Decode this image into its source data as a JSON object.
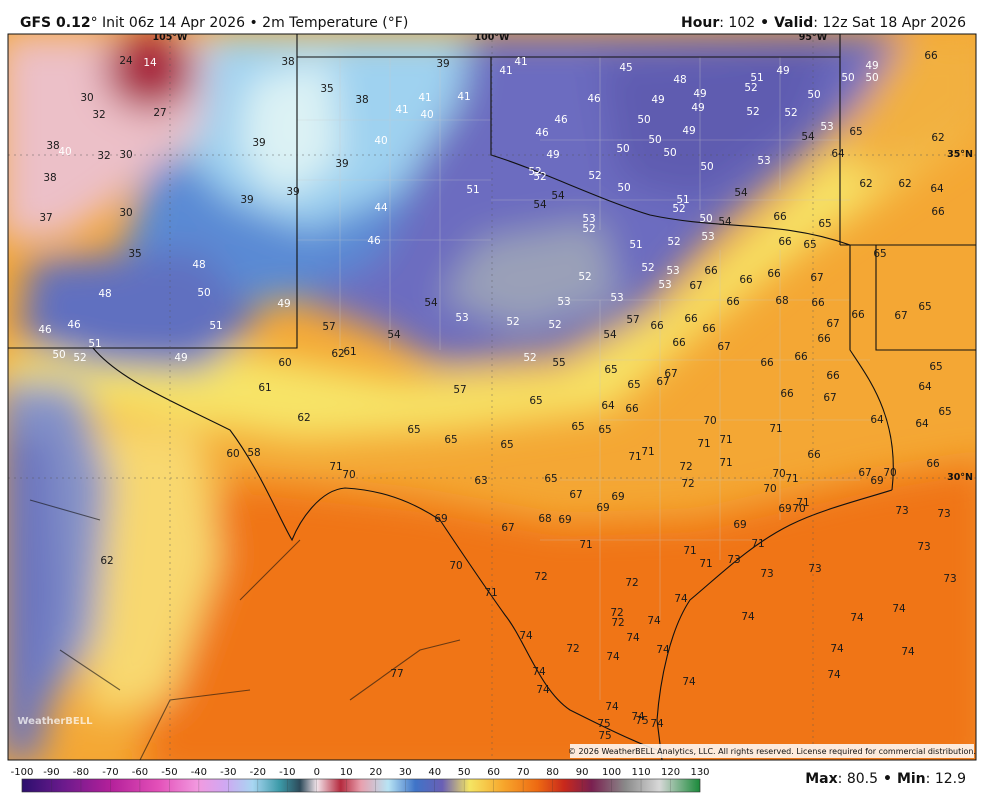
{
  "header": {
    "model": "GFS 0.12",
    "description": "° Init 06z 14 Apr 2026 • 2m Temperature (°F)",
    "hour_label": "Hour",
    "hour_value": ": 102",
    "separator": "•",
    "valid_label": "Valid",
    "valid_value": ": 12z Sat 18 Apr 2026"
  },
  "map": {
    "coordinate_labels": [
      "105°W",
      "100°W",
      "95°W",
      "35°N",
      "30°N"
    ],
    "temperature_labels": [
      24,
      14,
      38,
      39,
      41,
      41,
      45,
      48,
      51,
      49,
      50,
      49,
      50,
      66,
      30,
      35,
      38,
      41,
      41,
      52,
      49,
      49,
      49,
      46,
      50,
      32,
      27,
      41,
      40,
      46,
      50,
      52,
      52,
      53,
      65,
      62,
      38,
      40,
      32,
      30,
      39,
      40,
      46,
      49,
      50,
      50,
      54,
      64,
      49,
      50,
      50,
      53,
      39,
      52,
      52,
      52,
      38,
      39,
      51,
      62,
      62,
      64,
      50,
      51,
      54,
      54,
      54,
      52,
      37,
      30,
      39,
      44,
      66,
      66,
      65,
      54,
      53,
      52,
      50,
      53,
      35,
      46,
      51,
      52,
      66,
      65,
      65,
      48,
      52,
      53,
      66,
      66,
      66,
      67,
      52,
      53,
      67,
      48,
      50,
      49,
      54,
      53,
      53,
      66,
      68,
      66,
      65,
      67,
      66,
      46,
      46,
      51,
      57,
      53,
      52,
      52,
      57,
      66,
      66,
      66,
      54,
      54,
      67,
      66,
      51,
      50,
      52,
      49,
      62,
      61,
      52,
      55,
      66,
      67,
      66,
      66,
      60,
      61,
      57,
      65,
      65,
      67,
      67,
      66,
      66,
      67,
      64,
      65,
      65,
      62,
      65,
      64,
      66,
      70,
      71,
      64,
      64,
      65,
      65,
      65,
      65,
      65,
      71,
      71,
      66,
      60,
      58,
      71,
      70,
      71,
      71,
      72,
      71,
      70,
      71,
      66,
      67,
      69,
      70,
      63,
      65,
      72,
      70,
      67,
      69,
      69,
      69,
      70,
      71,
      73,
      73,
      69,
      67,
      68,
      69,
      69,
      71,
      71,
      71,
      73,
      62,
      70,
      72,
      71,
      73,
      73,
      73,
      73,
      71,
      72,
      74,
      72,
      72,
      74,
      74,
      74,
      74,
      74,
      74,
      72,
      74,
      74,
      74,
      74,
      77,
      74,
      74,
      74,
      74,
      74,
      74,
      75,
      75,
      74,
      75
    ],
    "logo": "WeatherBELL",
    "copyright": "© 2026 WeatherBELL Analytics, LLC. All rights reserved. License required for commercial distribution."
  },
  "colorbar": {
    "ticks": [
      -100,
      -90,
      -80,
      -70,
      -60,
      -50,
      -40,
      -30,
      -20,
      -10,
      0,
      10,
      20,
      30,
      40,
      50,
      60,
      70,
      80,
      90,
      100,
      110,
      120,
      130
    ]
  },
  "footer": {
    "max_label": "Max",
    "max_value": ": 80.5",
    "separator": "•",
    "min_label": "Min",
    "min_value": ": 12.9"
  }
}
